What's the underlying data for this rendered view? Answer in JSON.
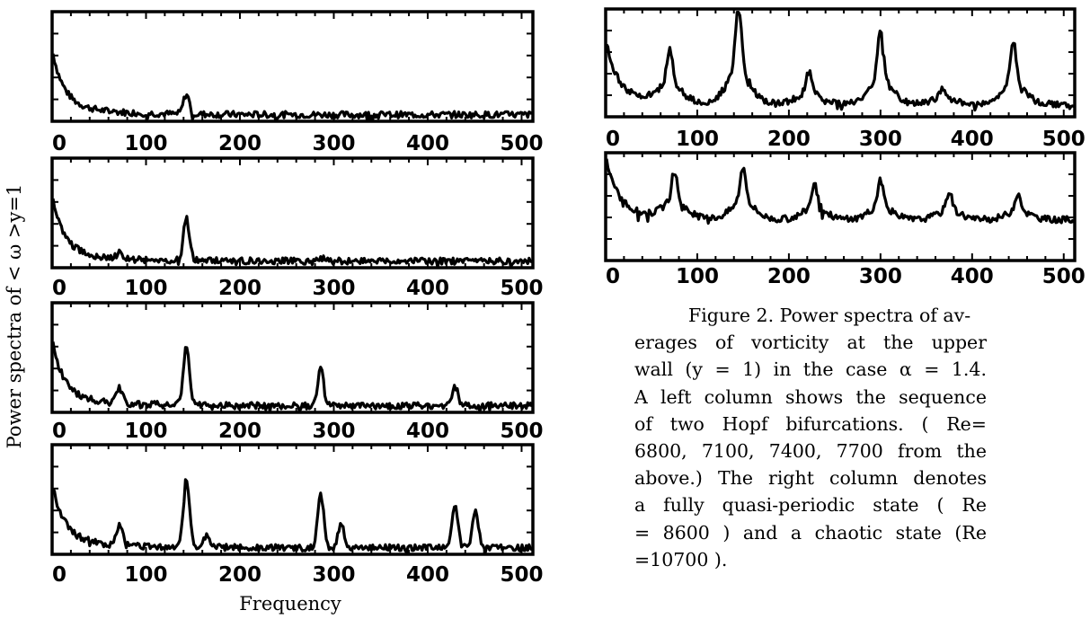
{
  "ylabel": "Power spectra of < ω >y=1",
  "xlabel": "Frequency",
  "caption": {
    "lines": [
      "Figure 2. Power spectra of av-",
      "erages of vorticity at the upper",
      "wall (y = 1) in the case α = 1.4.",
      "A left column shows the sequence",
      "of two Hopf bifurcations. ( Re=",
      "6800, 7100, 7400, 7700 from the",
      "above.) The right column denotes",
      "a fully quasi-periodic state ( Re",
      "= 8600 ) and a chaotic state (Re",
      "=10700 )."
    ]
  },
  "chart_data": [
    {
      "id": "left-1",
      "type": "line",
      "column": "left",
      "Re": 6800,
      "xlim": [
        0,
        512
      ],
      "xticks": [
        0,
        100,
        200,
        300,
        400,
        500
      ],
      "ylim": [
        0,
        1
      ],
      "peaks": [
        {
          "x": 143,
          "height": 0.18
        }
      ],
      "baseline": 0.06
    },
    {
      "id": "left-2",
      "type": "line",
      "column": "left",
      "Re": 7100,
      "xlim": [
        0,
        512
      ],
      "xticks": [
        0,
        100,
        200,
        300,
        400,
        500
      ],
      "ylim": [
        0,
        1
      ],
      "peaks": [
        {
          "x": 143,
          "height": 0.38
        },
        {
          "x": 72,
          "height": 0.05
        },
        {
          "x": 286,
          "height": 0.03
        }
      ],
      "baseline": 0.06
    },
    {
      "id": "left-3",
      "type": "line",
      "column": "left",
      "Re": 7400,
      "xlim": [
        0,
        512
      ],
      "xticks": [
        0,
        100,
        200,
        300,
        400,
        500
      ],
      "ylim": [
        0,
        1
      ],
      "peaks": [
        {
          "x": 72,
          "height": 0.14
        },
        {
          "x": 143,
          "height": 0.55
        },
        {
          "x": 286,
          "height": 0.33
        },
        {
          "x": 429,
          "height": 0.18
        }
      ],
      "baseline": 0.06
    },
    {
      "id": "left-4",
      "type": "line",
      "column": "left",
      "Re": 7700,
      "xlim": [
        0,
        512
      ],
      "xticks": [
        0,
        100,
        200,
        300,
        400,
        500
      ],
      "ylim": [
        0,
        1
      ],
      "peaks": [
        {
          "x": 72,
          "height": 0.18
        },
        {
          "x": 143,
          "height": 0.63
        },
        {
          "x": 165,
          "height": 0.12
        },
        {
          "x": 286,
          "height": 0.5
        },
        {
          "x": 308,
          "height": 0.22
        },
        {
          "x": 429,
          "height": 0.38
        },
        {
          "x": 451,
          "height": 0.33
        }
      ],
      "baseline": 0.06
    },
    {
      "id": "right-1",
      "type": "line",
      "column": "right",
      "Re": 8600,
      "xlim": [
        0,
        512
      ],
      "xticks": [
        0,
        100,
        200,
        300,
        400,
        500
      ],
      "ylim": [
        0,
        1
      ],
      "peaks": [
        {
          "x": 70,
          "height": 0.32
        },
        {
          "x": 145,
          "height": 0.6
        },
        {
          "x": 222,
          "height": 0.2
        },
        {
          "x": 300,
          "height": 0.45
        },
        {
          "x": 368,
          "height": 0.1
        },
        {
          "x": 445,
          "height": 0.38
        }
      ],
      "baseline": 0.12
    },
    {
      "id": "right-2",
      "type": "line",
      "column": "right",
      "Re": 10700,
      "xlim": [
        0,
        512
      ],
      "xticks": [
        0,
        100,
        200,
        300,
        400,
        500
      ],
      "ylim": [
        0,
        1
      ],
      "peaks": [
        {
          "x": 75,
          "height": 0.28
        },
        {
          "x": 150,
          "height": 0.32
        },
        {
          "x": 228,
          "height": 0.22
        },
        {
          "x": 300,
          "height": 0.24
        },
        {
          "x": 375,
          "height": 0.17
        },
        {
          "x": 450,
          "height": 0.16
        }
      ],
      "baseline": 0.38
    }
  ]
}
